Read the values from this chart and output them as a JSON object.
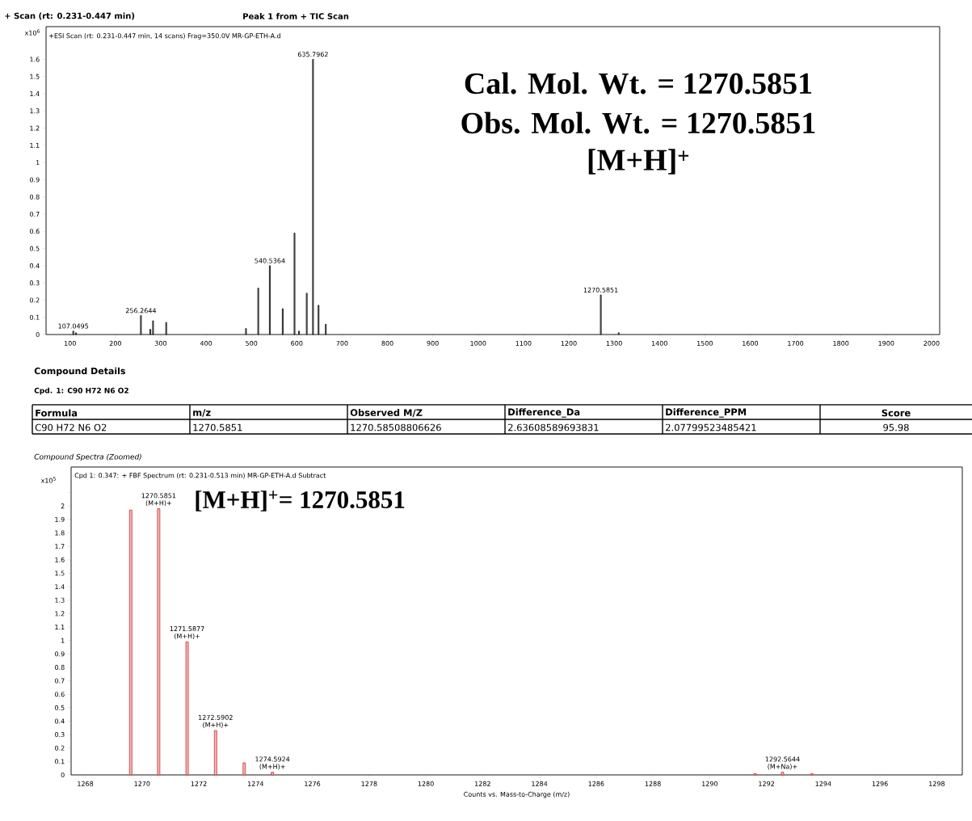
{
  "chart_data": [
    {
      "type": "bar",
      "title": "+ Scan (rt: 0.231-0.447 min)",
      "subtitle": "Peak 1 from + TIC Scan",
      "ylabel": "x10$^{6}$",
      "x": [
        107.0495,
        113,
        256.2644,
        277,
        283,
        312,
        488,
        515,
        540.5364,
        569,
        595,
        605,
        622,
        635.7962,
        648,
        664,
        1270.5851,
        1310
      ],
      "values": [
        0.02,
        0.01,
        0.11,
        0.03,
        0.08,
        0.07,
        0.035,
        0.27,
        0.4,
        0.15,
        0.59,
        0.02,
        0.24,
        1.6,
        0.17,
        0.06,
        0.23,
        0.01
      ],
      "color": "#000000",
      "xlim": [
        47,
        2018
      ],
      "ylim": [
        0,
        1.79
      ],
      "xticks": [
        100,
        200,
        300,
        400,
        500,
        600,
        700,
        800,
        900,
        1000,
        1100,
        1200,
        1300,
        1400,
        1500,
        1600,
        1700,
        1800,
        1900,
        2000
      ],
      "yticks": [
        0,
        0.1,
        0.2,
        0.3,
        0.4,
        0.5,
        0.6,
        0.7,
        0.8,
        0.9,
        1,
        1.1,
        1.2,
        1.3,
        1.4,
        1.5,
        1.6
      ],
      "annotations": [
        "+ESI Scan (rt: 0.231-0.447 min, 14 scans) Frag=350.0V MR-GP-ETH-A.d",
        "Cal. Mol. Wt. = 1270.5851",
        "Obs. Mol. Wt. = 1270.5851",
        "[M+H]$^{+}$",
        {
          "text": "107.0495",
          "x": 107.0495,
          "y": 0.02
        },
        {
          "text": "256.2644",
          "x": 256.2644,
          "y": 0.11
        },
        {
          "text": "540.5364",
          "x": 540.5364,
          "y": 0.4
        },
        {
          "text": "635.7962",
          "x": 635.7962,
          "y": 1.6
        },
        {
          "text": "1270.5851",
          "x": 1270.5851,
          "y": 0.23
        }
      ]
    },
    {
      "type": "other",
      "title": "Compound Details",
      "subtitle": "Cpd. 1: C90 H72 N6 O2",
      "annotations": [
        "Formula",
        "m/z",
        "Observed M/Z",
        "Difference_Da",
        "Difference_PPM",
        "Score",
        "C90 H72 N6 O2",
        "1270.5851",
        "1270.58508806626",
        "2.63608589693831",
        "2.07799523485421",
        "95.98"
      ]
    },
    {
      "type": "bar",
      "title": "Compound Spectra (Zoomed)",
      "xlabel": "Counts vs. Mass-to-Charge (m/z)",
      "ylabel": "x10$^{5}$",
      "x": [
        1269.6,
        1270.5851,
        1271.5877,
        1272.5902,
        1273.6,
        1274.5924,
        1291.6,
        1292.5644,
        1293.6
      ],
      "values": [
        1.97,
        1.98,
        0.99,
        0.33,
        0.09,
        0.02,
        0.01,
        0.02,
        0.01
      ],
      "color": "#d03030",
      "xlim": [
        1267.5,
        1298.9
      ],
      "ylim": [
        0,
        2.29
      ],
      "xticks": [
        1268,
        1270,
        1272,
        1274,
        1276,
        1278,
        1280,
        1282,
        1284,
        1286,
        1288,
        1290,
        1292,
        1294,
        1296,
        1298
      ],
      "yticks": [
        0,
        0.1,
        0.2,
        0.3,
        0.4,
        0.5,
        0.6,
        0.7,
        0.8,
        0.9,
        1,
        1.1,
        1.2,
        1.3,
        1.4,
        1.5,
        1.6,
        1.7,
        1.8,
        1.9,
        2,
        {
          "value": 2.1,
          "label": null
        }
      ],
      "annotations": [
        "Cpd 1: 0.347: + FBF Spectrum (rt: 0.231-0.513 min) MR-GP-ETH-A.d  Subtract",
        "[M+H]$^{+}$= 1270.5851",
        {
          "text": "1270.5851",
          "x": 1270.5851,
          "y": 1.98
        },
        {
          "text": "(M+H)+",
          "x": 1270.5851,
          "y": 1.98
        },
        {
          "text": "1271.5877",
          "x": 1271.5877,
          "y": 0.99
        },
        {
          "text": "(M+H)+",
          "x": 1271.5877,
          "y": 0.99
        },
        {
          "text": "1272.5902",
          "x": 1272.5902,
          "y": 0.33
        },
        {
          "text": "(M+H)+",
          "x": 1272.5902,
          "y": 0.33
        },
        {
          "text": "1274.5924",
          "x": 1274.5924,
          "y": 0.02
        },
        {
          "text": "(M+H)+",
          "x": 1274.5924,
          "y": 0.02
        },
        {
          "text": "1292.5644",
          "x": 1292.5644,
          "y": 0.02
        },
        {
          "text": "(M+Na)+",
          "x": 1292.5644,
          "y": 0.02
        }
      ]
    }
  ]
}
